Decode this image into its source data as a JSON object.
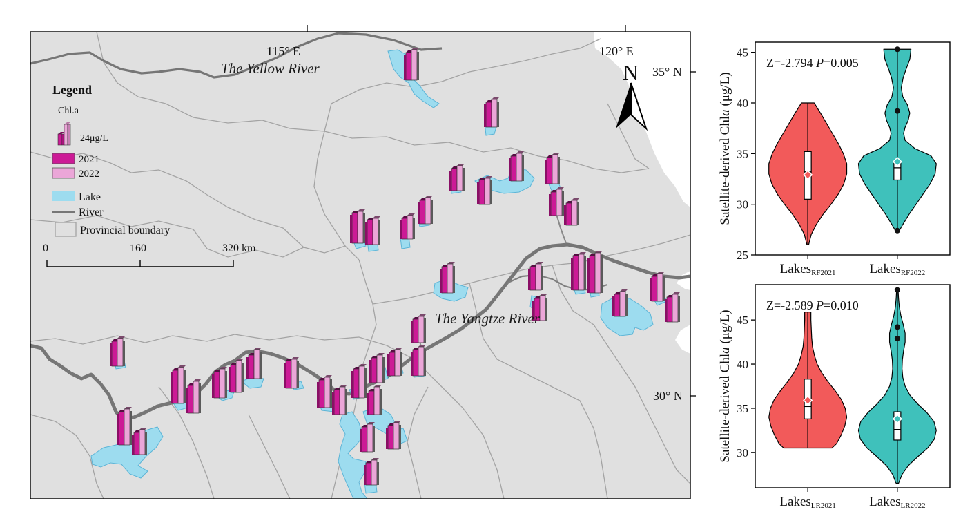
{
  "map": {
    "coord_labels": {
      "lon_115": "115° E",
      "lon_120": "120° E",
      "lat_35": "35° N",
      "lat_30": "30° N"
    },
    "river_labels": {
      "yellow": "The Yellow River",
      "yangtze": "The Yangtze River"
    },
    "north_label": "N",
    "legend": {
      "title": "Legend",
      "chl_label": "Chl.a",
      "scale_value": "24μg/L",
      "year_2021": "2021",
      "year_2022": "2022",
      "lake": "Lake",
      "river": "River",
      "boundary": "Provincial boundary"
    },
    "scalebar": {
      "t0": "0",
      "t1": "160",
      "t2": "320 km"
    },
    "colors": {
      "land": "#e0e0e0",
      "sea": "#ffffff",
      "lake": "#9ddcef",
      "river": "#767676",
      "boundary": "#a3a3a3",
      "bar_2021": "#cc1a96",
      "bar_2022": "#eba6d8"
    }
  },
  "chart_data": [
    {
      "type": "violin",
      "ylabel": "Satellite-derived Chla (μg/L)",
      "ylim": [
        25,
        46
      ],
      "yticks": [
        25,
        30,
        35,
        40,
        45
      ],
      "stat_text": {
        "z": "Z=-2.794",
        "p_label": "P",
        "p_value": "=0.005"
      },
      "groups": [
        {
          "label_main": "Lakes",
          "label_sub": "RF2021",
          "color": "#f25a5a",
          "min": 26,
          "q1": 30.5,
          "median": 33.2,
          "q3": 35.2,
          "max": 40,
          "mean": 32.9,
          "outliers": [],
          "density": [
            [
              26,
              0.02
            ],
            [
              27,
              0.08
            ],
            [
              28,
              0.2
            ],
            [
              29,
              0.36
            ],
            [
              30,
              0.55
            ],
            [
              31,
              0.72
            ],
            [
              32,
              0.85
            ],
            [
              33,
              0.92
            ],
            [
              34,
              0.92
            ],
            [
              35,
              0.84
            ],
            [
              36,
              0.72
            ],
            [
              37,
              0.58
            ],
            [
              38,
              0.44
            ],
            [
              39,
              0.3
            ],
            [
              40,
              0.15
            ]
          ]
        },
        {
          "label_main": "Lakes",
          "label_sub": "RF2022",
          "color": "#3fc1bb",
          "min": 27.4,
          "q1": 32.4,
          "median": 33.6,
          "q3": 34.2,
          "max": 45.3,
          "mean": 34.2,
          "outliers": [
            45.3,
            39.2,
            27.4
          ],
          "density": [
            [
              27.4,
              0.05
            ],
            [
              28,
              0.14
            ],
            [
              29,
              0.3
            ],
            [
              30,
              0.48
            ],
            [
              31,
              0.66
            ],
            [
              32,
              0.84
            ],
            [
              33,
              0.97
            ],
            [
              34,
              1.0
            ],
            [
              34.8,
              0.86
            ],
            [
              35.5,
              0.45
            ],
            [
              36.3,
              0.2
            ],
            [
              37,
              0.16
            ],
            [
              37.6,
              0.2
            ],
            [
              38.3,
              0.28
            ],
            [
              39,
              0.32
            ],
            [
              39.8,
              0.26
            ],
            [
              40.6,
              0.14
            ],
            [
              41.5,
              0.1
            ],
            [
              42.5,
              0.15
            ],
            [
              43.5,
              0.24
            ],
            [
              44.3,
              0.32
            ],
            [
              45.3,
              0.35
            ]
          ]
        }
      ]
    },
    {
      "type": "violin",
      "ylabel": "Satellite-derived Chla (μg/L)",
      "ylim": [
        26,
        49
      ],
      "yticks": [
        30,
        35,
        40,
        45
      ],
      "stat_text": {
        "z": "Z=-2.589",
        "p_label": "P",
        "p_value": "=0.010"
      },
      "groups": [
        {
          "label_main": "Lakes",
          "label_sub": "LR2021",
          "color": "#f25a5a",
          "min": 30.5,
          "q1": 33.8,
          "median": 35.2,
          "q3": 38.3,
          "max": 45.9,
          "mean": 35.9,
          "outliers": [],
          "density": [
            [
              30.5,
              0.62
            ],
            [
              31,
              0.74
            ],
            [
              32,
              0.86
            ],
            [
              33,
              0.95
            ],
            [
              34,
              1.0
            ],
            [
              35,
              0.96
            ],
            [
              36,
              0.86
            ],
            [
              37,
              0.7
            ],
            [
              38,
              0.52
            ],
            [
              39,
              0.36
            ],
            [
              40,
              0.24
            ],
            [
              41,
              0.17
            ],
            [
              42,
              0.12
            ],
            [
              43,
              0.1
            ],
            [
              44,
              0.09
            ],
            [
              45,
              0.08
            ],
            [
              45.9,
              0.08
            ]
          ]
        },
        {
          "label_main": "Lakes",
          "label_sub": "LR2022",
          "color": "#3fc1bb",
          "min": 26.5,
          "q1": 31.4,
          "median": 32.6,
          "q3": 34.6,
          "max": 48.4,
          "mean": 33.8,
          "outliers": [
            48.4,
            44.2,
            42.9
          ],
          "density": [
            [
              26.5,
              0.03
            ],
            [
              27.5,
              0.12
            ],
            [
              28.5,
              0.28
            ],
            [
              29.5,
              0.52
            ],
            [
              30.5,
              0.78
            ],
            [
              31.5,
              0.95
            ],
            [
              32.5,
              1.0
            ],
            [
              33.5,
              0.94
            ],
            [
              34.5,
              0.76
            ],
            [
              35.5,
              0.52
            ],
            [
              36.5,
              0.32
            ],
            [
              37.5,
              0.2
            ],
            [
              38.5,
              0.14
            ],
            [
              39.5,
              0.12
            ],
            [
              40.5,
              0.13
            ],
            [
              41.5,
              0.16
            ],
            [
              42.5,
              0.2
            ],
            [
              43.5,
              0.2
            ],
            [
              44.5,
              0.15
            ],
            [
              45.5,
              0.09
            ],
            [
              46.5,
              0.05
            ],
            [
              47.5,
              0.03
            ],
            [
              48.4,
              0.02
            ]
          ]
        }
      ]
    }
  ]
}
